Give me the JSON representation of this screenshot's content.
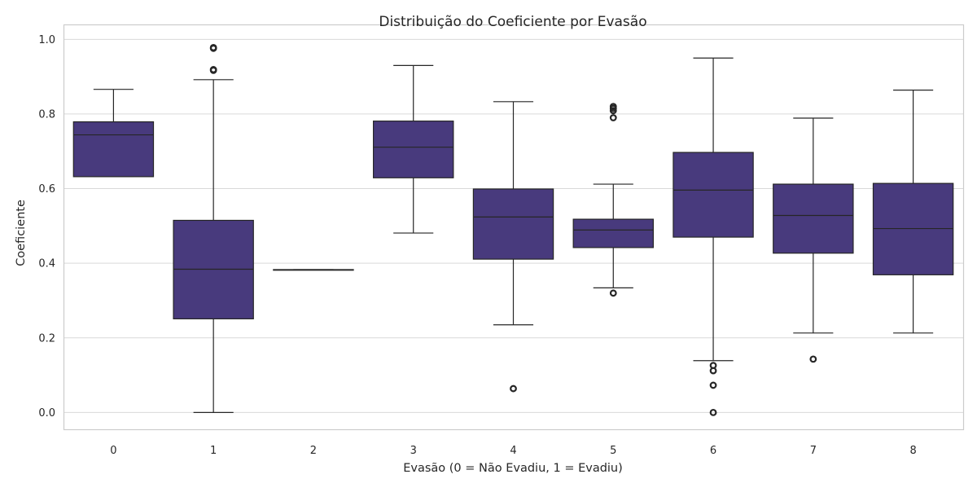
{
  "chart_data": {
    "type": "boxplot",
    "title": "Distribuição do Coeficiente por Evasão",
    "xlabel": "Evasão (0 = Não Evadiu, 1 = Evadiu)",
    "ylabel": "Coeficiente",
    "ylim": [
      -0.045,
      1.04
    ],
    "yticks": [
      "0.0",
      "0.2",
      "0.4",
      "0.6",
      "0.8",
      "1.0"
    ],
    "ytick_values": [
      0,
      0.2,
      0.4,
      0.6,
      0.8,
      1.0
    ],
    "categories": [
      "0",
      "1",
      "2",
      "3",
      "4",
      "5",
      "6",
      "7",
      "8"
    ],
    "grid": true,
    "box_color": "#483a7d",
    "boxes": [
      {
        "category": "0",
        "whislo": 0.632,
        "q1": 0.632,
        "med": 0.744,
        "q3": 0.779,
        "whishi": 0.866,
        "fliers": []
      },
      {
        "category": "1",
        "whislo": 0.0,
        "q1": 0.251,
        "med": 0.384,
        "q3": 0.515,
        "whishi": 0.892,
        "fliers": [
          0.917,
          0.919,
          0.976,
          0.978
        ]
      },
      {
        "category": "2",
        "whislo": 0.382,
        "q1": 0.382,
        "med": 0.382,
        "q3": 0.383,
        "whishi": 0.383,
        "fliers": []
      },
      {
        "category": "3",
        "whislo": 0.481,
        "q1": 0.629,
        "med": 0.711,
        "q3": 0.781,
        "whishi": 0.93,
        "fliers": []
      },
      {
        "category": "4",
        "whislo": 0.235,
        "q1": 0.411,
        "med": 0.524,
        "q3": 0.599,
        "whishi": 0.833,
        "fliers": [
          0.064
        ]
      },
      {
        "category": "5",
        "whislo": 0.334,
        "q1": 0.442,
        "med": 0.489,
        "q3": 0.518,
        "whishi": 0.612,
        "fliers": [
          0.32,
          0.79,
          0.809,
          0.815,
          0.82
        ]
      },
      {
        "category": "6",
        "whislo": 0.139,
        "q1": 0.47,
        "med": 0.596,
        "q3": 0.697,
        "whishi": 0.95,
        "fliers": [
          0.0,
          0.073,
          0.112,
          0.126
        ]
      },
      {
        "category": "7",
        "whislo": 0.213,
        "q1": 0.427,
        "med": 0.528,
        "q3": 0.612,
        "whishi": 0.789,
        "fliers": [
          0.143
        ]
      },
      {
        "category": "8",
        "whislo": 0.213,
        "q1": 0.369,
        "med": 0.493,
        "q3": 0.614,
        "whishi": 0.864,
        "fliers": []
      }
    ]
  }
}
